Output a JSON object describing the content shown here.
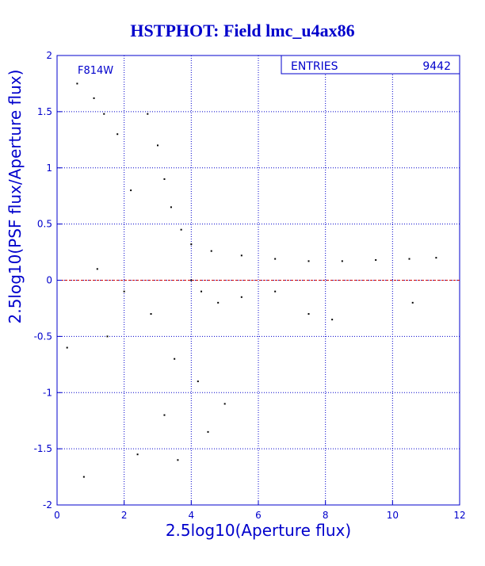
{
  "chart_data": {
    "type": "scatter",
    "title": "HSTPHOT: Field lmc_u4ax86",
    "xlabel": "2.5log10(Aperture flux)",
    "ylabel": "2.5log10(PSF flux/Aperture flux)",
    "xlim": [
      0,
      12
    ],
    "ylim": [
      -2,
      2
    ],
    "xticks": [
      0,
      2,
      4,
      6,
      8,
      10,
      12
    ],
    "yticks": [
      -2,
      -1.5,
      -1,
      -0.5,
      0,
      0.5,
      1,
      1.5,
      2
    ],
    "xtick_labels": [
      "0",
      "2",
      "4",
      "6",
      "8",
      "10",
      "12"
    ],
    "ytick_labels": [
      "-2",
      "-1.5",
      "-1",
      "-0.5",
      "0",
      "0.5",
      "1",
      "1.5",
      "2"
    ],
    "grid": true,
    "annotation": "F814W",
    "stats_box": {
      "label": "ENTRIES",
      "value": "9442"
    },
    "reference_line_y": 0,
    "colors": {
      "title": "#0000cc",
      "axis": "#0000cc",
      "grid": "#0000cc",
      "points": "#000000",
      "reference_line": "#cc0000"
    },
    "points": [
      [
        0.6,
        1.75
      ],
      [
        1.1,
        1.62
      ],
      [
        1.4,
        1.48
      ],
      [
        1.8,
        1.3
      ],
      [
        2.7,
        1.48
      ],
      [
        3.0,
        1.2
      ],
      [
        3.2,
        0.9
      ],
      [
        3.4,
        0.65
      ],
      [
        3.7,
        0.45
      ],
      [
        4.0,
        0.32
      ],
      [
        4.6,
        0.26
      ],
      [
        5.5,
        0.22
      ],
      [
        6.5,
        0.19
      ],
      [
        7.5,
        0.17
      ],
      [
        8.5,
        0.17
      ],
      [
        9.5,
        0.18
      ],
      [
        10.5,
        0.19
      ],
      [
        11.3,
        0.2
      ],
      [
        4.0,
        0.0
      ],
      [
        4.3,
        -0.1
      ],
      [
        4.8,
        -0.2
      ],
      [
        5.5,
        -0.15
      ],
      [
        6.5,
        -0.1
      ],
      [
        7.5,
        -0.3
      ],
      [
        8.2,
        -0.35
      ],
      [
        2.8,
        -0.3
      ],
      [
        3.5,
        -0.7
      ],
      [
        4.2,
        -0.9
      ],
      [
        3.2,
        -1.2
      ],
      [
        4.5,
        -1.35
      ],
      [
        5.0,
        -1.1
      ],
      [
        3.6,
        -1.6
      ],
      [
        2.4,
        -1.55
      ],
      [
        0.8,
        -1.75
      ],
      [
        0.3,
        -0.6
      ],
      [
        1.2,
        0.1
      ],
      [
        2.2,
        0.8
      ],
      [
        1.5,
        -0.5
      ],
      [
        10.6,
        -0.2
      ],
      [
        2.0,
        -0.1
      ]
    ]
  }
}
